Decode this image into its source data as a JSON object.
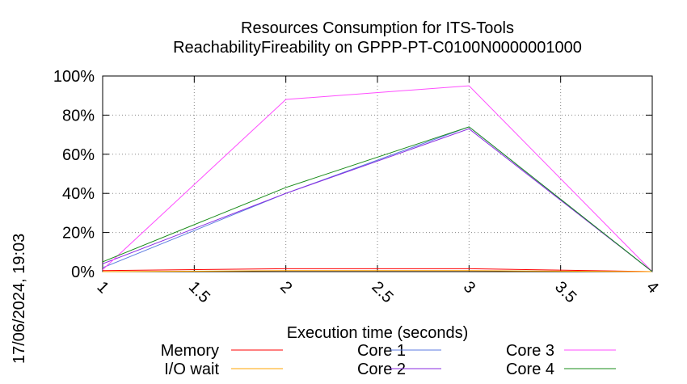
{
  "chart_data": {
    "type": "line",
    "title": [
      "Resources Consumption for ITS-Tools",
      "ReachabilityFireability on GPPP-PT-C0100N0000001000"
    ],
    "xlabel": "Execution time (seconds)",
    "ylabel": "",
    "x": [
      1,
      2,
      3,
      4
    ],
    "xlim": [
      1,
      4
    ],
    "ylim": [
      0,
      100
    ],
    "xticks": [
      "1",
      "1.5",
      "2",
      "2.5",
      "3",
      "3.5",
      "4"
    ],
    "yticks": [
      "0%",
      "20%",
      "40%",
      "60%",
      "80%",
      "100%"
    ],
    "grid": true,
    "legend_position": "bottom",
    "timestamp": "17/06/2024, 19:03",
    "series": [
      {
        "name": "Memory",
        "color": "#ff0000",
        "values": [
          0.5,
          1.5,
          1.5,
          0
        ]
      },
      {
        "name": "I/O wait",
        "color": "#ffa500",
        "values": [
          0,
          0.5,
          0.5,
          0
        ]
      },
      {
        "name": "Core 1",
        "color": "#5b7be0",
        "values": [
          2,
          40,
          74,
          0
        ]
      },
      {
        "name": "Core 2",
        "color": "#8a2be2",
        "values": [
          4,
          40,
          73,
          0
        ]
      },
      {
        "name": "Core 3",
        "color": "#ff4dff",
        "values": [
          1,
          88,
          95,
          0
        ]
      },
      {
        "name": "Core 4",
        "color": "#1a8c1a",
        "values": [
          5,
          43,
          74,
          0
        ]
      }
    ]
  }
}
